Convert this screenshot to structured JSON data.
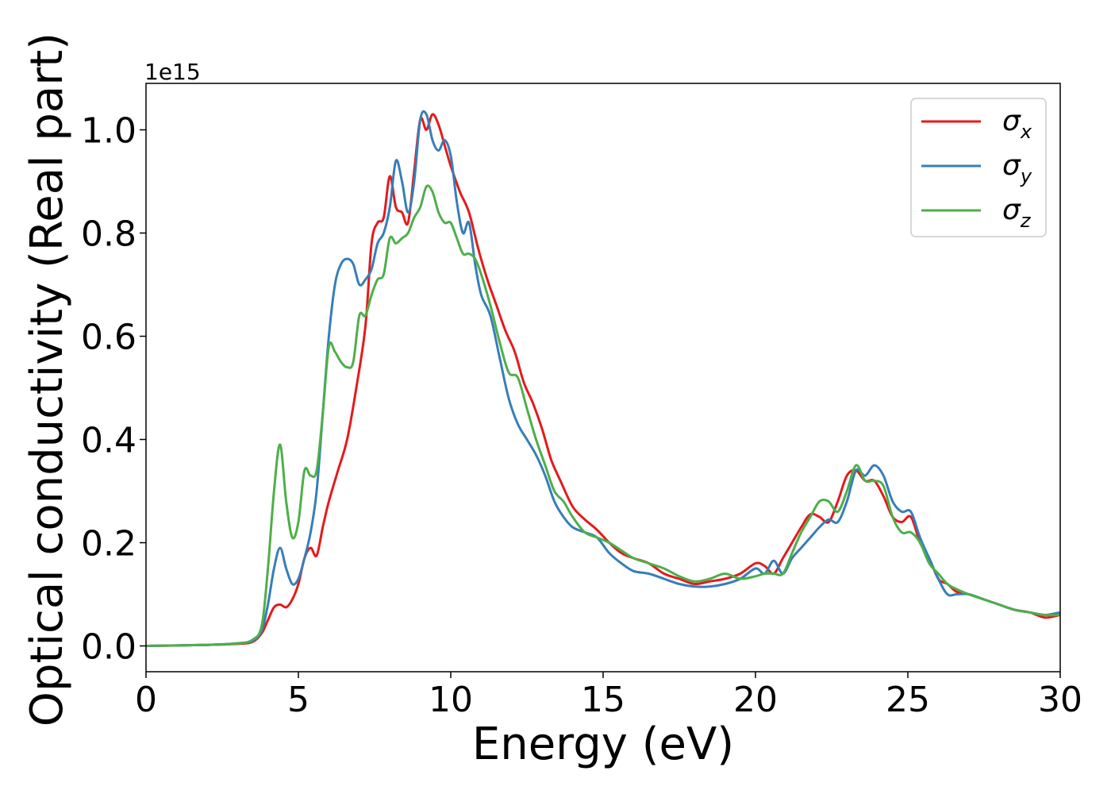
{
  "chart_data": {
    "type": "line",
    "xlabel": "Energy (eV)",
    "ylabel": "Optical conductivity (Real part)",
    "y_offset_label": "1e15",
    "xlim": [
      0,
      30
    ],
    "ylim": [
      -0.05,
      1.09
    ],
    "x_ticks": [
      {
        "value": 0,
        "label": "0"
      },
      {
        "value": 5,
        "label": "5"
      },
      {
        "value": 10,
        "label": "10"
      },
      {
        "value": 15,
        "label": "15"
      },
      {
        "value": 20,
        "label": "20"
      },
      {
        "value": 25,
        "label": "25"
      },
      {
        "value": 30,
        "label": "30"
      }
    ],
    "y_ticks": [
      {
        "value": 0.0,
        "label": "0.0"
      },
      {
        "value": 0.2,
        "label": "0.2"
      },
      {
        "value": 0.4,
        "label": "0.4"
      },
      {
        "value": 0.6,
        "label": "0.6"
      },
      {
        "value": 0.8,
        "label": "0.8"
      },
      {
        "value": 1.0,
        "label": "1.0"
      }
    ],
    "grid": false,
    "legend_position": "top-right",
    "series": [
      {
        "name": "σx",
        "legend_symbol": "σ",
        "legend_sub": "x",
        "color": "#e41a1c",
        "x": [
          0,
          2,
          3,
          3.5,
          3.8,
          4.0,
          4.2,
          4.4,
          4.6,
          4.8,
          5.0,
          5.2,
          5.4,
          5.6,
          5.8,
          6.0,
          6.3,
          6.6,
          6.9,
          7.2,
          7.4,
          7.6,
          7.8,
          8.0,
          8.2,
          8.4,
          8.6,
          8.8,
          9.0,
          9.2,
          9.4,
          9.6,
          9.8,
          10.0,
          10.3,
          10.6,
          10.9,
          11.2,
          11.5,
          11.8,
          12.1,
          12.4,
          12.7,
          13.0,
          13.3,
          13.6,
          14.0,
          14.4,
          14.8,
          15.2,
          15.6,
          16.0,
          16.5,
          17.0,
          17.5,
          18.0,
          18.5,
          19.0,
          19.5,
          20.0,
          20.3,
          20.6,
          20.9,
          21.2,
          21.5,
          21.8,
          22.1,
          22.4,
          22.7,
          23.0,
          23.3,
          23.6,
          23.9,
          24.2,
          24.5,
          24.8,
          25.1,
          25.4,
          25.7,
          26.0,
          26.3,
          26.6,
          27.0,
          27.5,
          28.0,
          28.5,
          29.0,
          29.5,
          30.0
        ],
        "values": [
          0,
          0.002,
          0.004,
          0.008,
          0.025,
          0.05,
          0.075,
          0.08,
          0.075,
          0.09,
          0.12,
          0.17,
          0.19,
          0.175,
          0.23,
          0.28,
          0.34,
          0.4,
          0.5,
          0.62,
          0.78,
          0.82,
          0.83,
          0.91,
          0.85,
          0.84,
          0.82,
          0.92,
          1.02,
          1.0,
          1.03,
          1.01,
          0.97,
          0.93,
          0.88,
          0.84,
          0.77,
          0.71,
          0.66,
          0.61,
          0.57,
          0.51,
          0.47,
          0.42,
          0.36,
          0.32,
          0.27,
          0.245,
          0.225,
          0.2,
          0.18,
          0.17,
          0.16,
          0.14,
          0.13,
          0.12,
          0.125,
          0.13,
          0.14,
          0.16,
          0.155,
          0.14,
          0.17,
          0.2,
          0.23,
          0.255,
          0.25,
          0.24,
          0.28,
          0.33,
          0.34,
          0.32,
          0.32,
          0.29,
          0.25,
          0.24,
          0.25,
          0.2,
          0.17,
          0.13,
          0.12,
          0.105,
          0.1,
          0.09,
          0.08,
          0.07,
          0.065,
          0.055,
          0.06
        ]
      },
      {
        "name": "σy",
        "legend_symbol": "σ",
        "legend_sub": "y",
        "color": "#377eb8",
        "x": [
          0,
          2,
          3,
          3.5,
          3.8,
          4.0,
          4.2,
          4.4,
          4.6,
          4.8,
          5.0,
          5.2,
          5.4,
          5.6,
          5.8,
          6.0,
          6.2,
          6.4,
          6.6,
          6.8,
          7.0,
          7.2,
          7.4,
          7.6,
          7.8,
          8.0,
          8.2,
          8.4,
          8.6,
          8.8,
          9.0,
          9.2,
          9.4,
          9.6,
          9.8,
          10.0,
          10.2,
          10.4,
          10.6,
          10.8,
          11.0,
          11.3,
          11.6,
          11.9,
          12.2,
          12.5,
          12.8,
          13.1,
          13.4,
          13.7,
          14.0,
          14.4,
          14.8,
          15.2,
          15.6,
          16.0,
          16.5,
          17.0,
          17.5,
          18.0,
          18.5,
          19.0,
          19.5,
          20.0,
          20.3,
          20.6,
          20.9,
          21.2,
          21.5,
          21.8,
          22.1,
          22.4,
          22.7,
          23.0,
          23.3,
          23.6,
          23.9,
          24.2,
          24.5,
          24.8,
          25.1,
          25.4,
          25.7,
          26.0,
          26.3,
          26.6,
          27.0,
          27.5,
          28.0,
          28.5,
          29.0,
          29.5,
          30.0
        ],
        "values": [
          0,
          0.002,
          0.005,
          0.01,
          0.03,
          0.08,
          0.15,
          0.19,
          0.15,
          0.12,
          0.13,
          0.17,
          0.22,
          0.3,
          0.45,
          0.6,
          0.7,
          0.74,
          0.75,
          0.74,
          0.7,
          0.71,
          0.73,
          0.78,
          0.8,
          0.85,
          0.94,
          0.9,
          0.84,
          0.9,
          1.02,
          1.03,
          0.98,
          0.96,
          0.98,
          0.95,
          0.86,
          0.8,
          0.82,
          0.74,
          0.68,
          0.64,
          0.56,
          0.48,
          0.43,
          0.4,
          0.37,
          0.33,
          0.28,
          0.25,
          0.23,
          0.22,
          0.21,
          0.18,
          0.16,
          0.145,
          0.14,
          0.13,
          0.12,
          0.115,
          0.115,
          0.12,
          0.13,
          0.15,
          0.14,
          0.165,
          0.14,
          0.17,
          0.19,
          0.21,
          0.23,
          0.245,
          0.24,
          0.28,
          0.34,
          0.33,
          0.35,
          0.33,
          0.28,
          0.26,
          0.26,
          0.21,
          0.17,
          0.13,
          0.1,
          0.1,
          0.1,
          0.09,
          0.08,
          0.07,
          0.065,
          0.06,
          0.065
        ]
      },
      {
        "name": "σz",
        "legend_symbol": "σ",
        "legend_sub": "z",
        "color": "#4daf4a",
        "x": [
          0,
          2,
          3,
          3.5,
          3.8,
          4.0,
          4.2,
          4.4,
          4.6,
          4.8,
          5.0,
          5.2,
          5.4,
          5.6,
          5.8,
          6.0,
          6.2,
          6.4,
          6.6,
          6.8,
          7.0,
          7.2,
          7.4,
          7.6,
          7.8,
          8.0,
          8.2,
          8.4,
          8.6,
          8.8,
          9.0,
          9.2,
          9.4,
          9.6,
          9.8,
          10.0,
          10.2,
          10.4,
          10.6,
          10.8,
          11.0,
          11.3,
          11.6,
          11.9,
          12.2,
          12.5,
          12.8,
          13.1,
          13.4,
          13.7,
          14.0,
          14.4,
          14.8,
          15.2,
          15.6,
          16.0,
          16.5,
          17.0,
          17.5,
          18.0,
          18.5,
          19.0,
          19.5,
          20.0,
          20.3,
          20.6,
          20.9,
          21.2,
          21.5,
          21.8,
          22.1,
          22.4,
          22.7,
          23.0,
          23.3,
          23.6,
          23.9,
          24.2,
          24.5,
          24.8,
          25.1,
          25.4,
          25.7,
          26.0,
          26.3,
          26.6,
          27.0,
          27.5,
          28.0,
          28.5,
          29.0,
          29.5,
          30.0
        ],
        "values": [
          0,
          0.002,
          0.005,
          0.012,
          0.04,
          0.15,
          0.3,
          0.39,
          0.28,
          0.21,
          0.24,
          0.34,
          0.33,
          0.34,
          0.45,
          0.58,
          0.57,
          0.55,
          0.54,
          0.55,
          0.64,
          0.64,
          0.68,
          0.71,
          0.72,
          0.79,
          0.78,
          0.79,
          0.8,
          0.83,
          0.85,
          0.89,
          0.88,
          0.84,
          0.82,
          0.82,
          0.79,
          0.76,
          0.76,
          0.75,
          0.72,
          0.66,
          0.59,
          0.53,
          0.52,
          0.46,
          0.4,
          0.35,
          0.3,
          0.28,
          0.25,
          0.22,
          0.21,
          0.2,
          0.185,
          0.17,
          0.16,
          0.15,
          0.135,
          0.125,
          0.13,
          0.14,
          0.13,
          0.135,
          0.14,
          0.14,
          0.14,
          0.18,
          0.22,
          0.25,
          0.28,
          0.28,
          0.26,
          0.3,
          0.35,
          0.32,
          0.32,
          0.31,
          0.25,
          0.22,
          0.22,
          0.2,
          0.16,
          0.14,
          0.12,
          0.11,
          0.1,
          0.09,
          0.08,
          0.07,
          0.065,
          0.06,
          0.06
        ]
      }
    ]
  }
}
